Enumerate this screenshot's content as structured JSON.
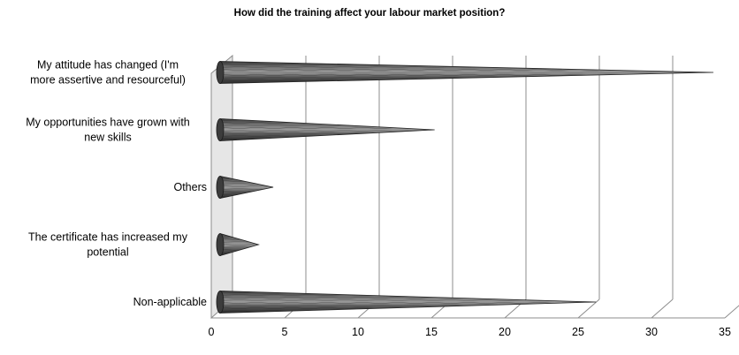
{
  "chart_data": {
    "type": "bar",
    "orientation": "horizontal",
    "style": "3d-cone",
    "title": "How did the training affect your labour market position?",
    "xlabel": "",
    "ylabel": "",
    "xlim": [
      0,
      35
    ],
    "xticks": [
      0,
      5,
      10,
      15,
      20,
      25,
      30,
      35
    ],
    "grid": true,
    "legend": "none",
    "categories": [
      {
        "lines": [
          "My attitude has changed (I'm",
          "more assertive and resourceful)"
        ],
        "value": 33.5
      },
      {
        "lines": [
          "My opportunities have grown with",
          "new skills"
        ],
        "value": 14.5
      },
      {
        "lines": [
          "Others"
        ],
        "value": 3.5
      },
      {
        "lines": [
          "The certificate has increased my",
          "potential"
        ],
        "value": 2.5
      },
      {
        "lines": [
          "Non-applicable"
        ],
        "value": 25.5
      }
    ],
    "colors": {
      "cone_dark": "#2f2f2f",
      "cone_mid": "#6e6e6e",
      "cone_light": "#9a9a9a",
      "wall": "#e6e6e6",
      "grid": "#8c8c8c"
    }
  }
}
